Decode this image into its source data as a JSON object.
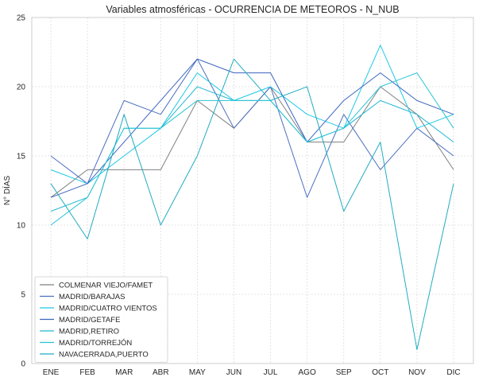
{
  "chart_data": {
    "type": "line",
    "title": "Variables atmosféricas - OCURRENCIA DE METEOROS - N_NUB",
    "xlabel": "",
    "ylabel": "N° DÍAS",
    "categories": [
      "ENE",
      "FEB",
      "MAR",
      "ABR",
      "MAY",
      "JUN",
      "JUL",
      "AGO",
      "SEP",
      "OCT",
      "NOV",
      "DIC"
    ],
    "ylim": [
      0,
      25
    ],
    "yticks": [
      0,
      5,
      10,
      15,
      20,
      25
    ],
    "grid": true,
    "legend_position": "lower-left",
    "series": [
      {
        "name": "COLMENAR VIEJO/FAMET",
        "color": "#808080",
        "values": [
          12,
          14,
          14,
          14,
          19,
          17,
          20,
          16,
          16,
          20,
          18,
          14
        ]
      },
      {
        "name": "MADRID/BARAJAS",
        "color": "#4a6fbf",
        "values": [
          15,
          13,
          19,
          18,
          22,
          17,
          20,
          12,
          18,
          14,
          17,
          15
        ]
      },
      {
        "name": "MADRID/CUATRO VIENTOS",
        "color": "#1ec8e6",
        "values": [
          14,
          13,
          15,
          17,
          21,
          19,
          20,
          18,
          17,
          23,
          17,
          18
        ]
      },
      {
        "name": "MADRID/GETAFE",
        "color": "#3c64c0",
        "values": [
          12,
          13,
          16,
          19,
          22,
          21,
          21,
          16,
          19,
          21,
          19,
          18
        ]
      },
      {
        "name": "MADRID,RETIRO",
        "color": "#22b8d2",
        "values": [
          11,
          12,
          17,
          17,
          20,
          19,
          19,
          16,
          17,
          19,
          18,
          16
        ]
      },
      {
        "name": "MADRID/TORREJÓN",
        "color": "#28c4d4",
        "values": [
          10,
          12,
          17,
          17,
          19,
          19,
          19,
          16,
          17,
          20,
          21,
          17
        ]
      },
      {
        "name": "NAVACERRADA,PUERTO",
        "color": "#20acc0",
        "values": [
          13,
          9,
          18,
          10,
          15,
          22,
          19,
          20,
          11,
          16,
          1,
          13
        ]
      }
    ]
  }
}
